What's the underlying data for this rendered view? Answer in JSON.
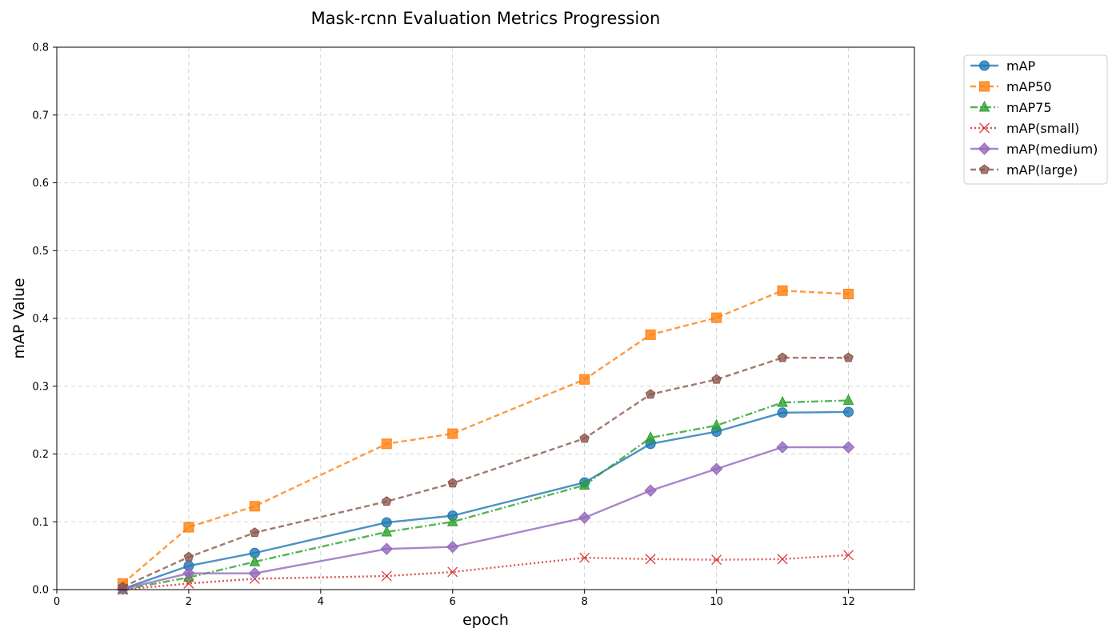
{
  "chart_data": {
    "type": "line",
    "title": "Mask-rcnn Evaluation Metrics Progression",
    "xlabel": "epoch",
    "ylabel": "mAP Value",
    "xlim": [
      0,
      13
    ],
    "ylim": [
      0,
      0.8
    ],
    "x_ticks": [
      "0",
      "2",
      "4",
      "6",
      "8",
      "10",
      "12"
    ],
    "y_ticks": [
      "0.0",
      "0.1",
      "0.2",
      "0.3",
      "0.4",
      "0.5",
      "0.6",
      "0.7",
      "0.8"
    ],
    "grid": true,
    "legend_position": "outside-top-right",
    "x": [
      1,
      2,
      3,
      5,
      6,
      8,
      9,
      10,
      11,
      12
    ],
    "series": [
      {
        "name": "mAP",
        "color": "#1f77b4",
        "line_style": "solid",
        "marker": "circle",
        "values": [
          0.001,
          0.035,
          0.054,
          0.099,
          0.109,
          0.158,
          0.215,
          0.233,
          0.261,
          0.262
        ]
      },
      {
        "name": "mAP50",
        "color": "#ff7f0e",
        "line_style": "dashed",
        "marker": "square",
        "values": [
          0.009,
          0.092,
          0.123,
          0.215,
          0.23,
          0.31,
          0.376,
          0.401,
          0.441,
          0.436
        ]
      },
      {
        "name": "mAP75",
        "color": "#2ca02c",
        "line_style": "dashdot",
        "marker": "triangle",
        "values": [
          0.0,
          0.018,
          0.041,
          0.085,
          0.1,
          0.154,
          0.224,
          0.242,
          0.276,
          0.279
        ]
      },
      {
        "name": "mAP(small)",
        "color": "#d62728",
        "line_style": "dotted",
        "marker": "x",
        "values": [
          0.0,
          0.009,
          0.016,
          0.02,
          0.026,
          0.047,
          0.045,
          0.044,
          0.045,
          0.051
        ]
      },
      {
        "name": "mAP(medium)",
        "color": "#9467bd",
        "line_style": "solid",
        "marker": "diamond",
        "values": [
          0.001,
          0.024,
          0.024,
          0.06,
          0.063,
          0.106,
          0.146,
          0.178,
          0.21,
          0.21
        ]
      },
      {
        "name": "mAP(large)",
        "color": "#8c564b",
        "line_style": "dashed",
        "marker": "pentagon",
        "values": [
          0.004,
          0.048,
          0.084,
          0.13,
          0.157,
          0.223,
          0.288,
          0.31,
          0.342,
          0.342
        ]
      }
    ]
  }
}
